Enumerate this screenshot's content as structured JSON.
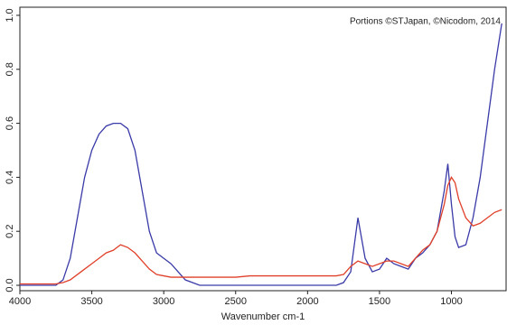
{
  "chart_data": {
    "type": "line",
    "xlabel": "Wavenumber cm-1",
    "annotation": "Portions ©STJapan, ©Nicodom, 2014",
    "x": [
      4000,
      3950,
      3900,
      3850,
      3800,
      3750,
      3700,
      3650,
      3600,
      3550,
      3500,
      3450,
      3400,
      3350,
      3300,
      3250,
      3200,
      3150,
      3100,
      3050,
      3000,
      2950,
      2900,
      2850,
      2800,
      2750,
      2700,
      2600,
      2500,
      2400,
      2300,
      2200,
      2100,
      2000,
      1900,
      1800,
      1750,
      1700,
      1650,
      1600,
      1550,
      1500,
      1450,
      1400,
      1350,
      1300,
      1250,
      1200,
      1150,
      1100,
      1050,
      1025,
      1000,
      975,
      950,
      900,
      850,
      800,
      750,
      700,
      650
    ],
    "series": [
      {
        "color": "#3a3aa8",
        "values": [
          0,
          0,
          0,
          0,
          0,
          0,
          0.02,
          0.1,
          0.25,
          0.4,
          0.5,
          0.56,
          0.59,
          0.6,
          0.6,
          0.58,
          0.5,
          0.35,
          0.2,
          0.12,
          0.1,
          0.08,
          0.05,
          0.02,
          0.01,
          0,
          0,
          0,
          0,
          0,
          0,
          0,
          0,
          0,
          0,
          0,
          0.01,
          0.05,
          0.25,
          0.1,
          0.05,
          0.06,
          0.1,
          0.08,
          0.07,
          0.06,
          0.1,
          0.12,
          0.15,
          0.2,
          0.35,
          0.45,
          0.3,
          0.18,
          0.14,
          0.15,
          0.25,
          0.4,
          0.6,
          0.8,
          0.97
        ]
      },
      {
        "color": "#e0402a",
        "values": [
          0.005,
          0.005,
          0.005,
          0.005,
          0.005,
          0.005,
          0.01,
          0.02,
          0.04,
          0.06,
          0.08,
          0.1,
          0.12,
          0.13,
          0.15,
          0.14,
          0.12,
          0.09,
          0.06,
          0.04,
          0.035,
          0.03,
          0.03,
          0.03,
          0.03,
          0.03,
          0.03,
          0.03,
          0.03,
          0.035,
          0.035,
          0.035,
          0.035,
          0.035,
          0.035,
          0.035,
          0.04,
          0.07,
          0.09,
          0.08,
          0.07,
          0.08,
          0.09,
          0.09,
          0.08,
          0.07,
          0.1,
          0.13,
          0.15,
          0.2,
          0.3,
          0.37,
          0.4,
          0.38,
          0.32,
          0.25,
          0.22,
          0.23,
          0.25,
          0.27,
          0.28
        ]
      }
    ],
    "xlim": [
      4000,
      620
    ],
    "xticks": [
      4000,
      3500,
      3000,
      2500,
      2000,
      1500,
      1000
    ],
    "ylim": [
      -0.02,
      1.03
    ],
    "yticks": [
      {
        "value": 0,
        "label": "0.0"
      },
      0.2,
      0.4,
      0.6,
      0.8,
      {
        "value": 1,
        "label": "1.0"
      }
    ]
  }
}
